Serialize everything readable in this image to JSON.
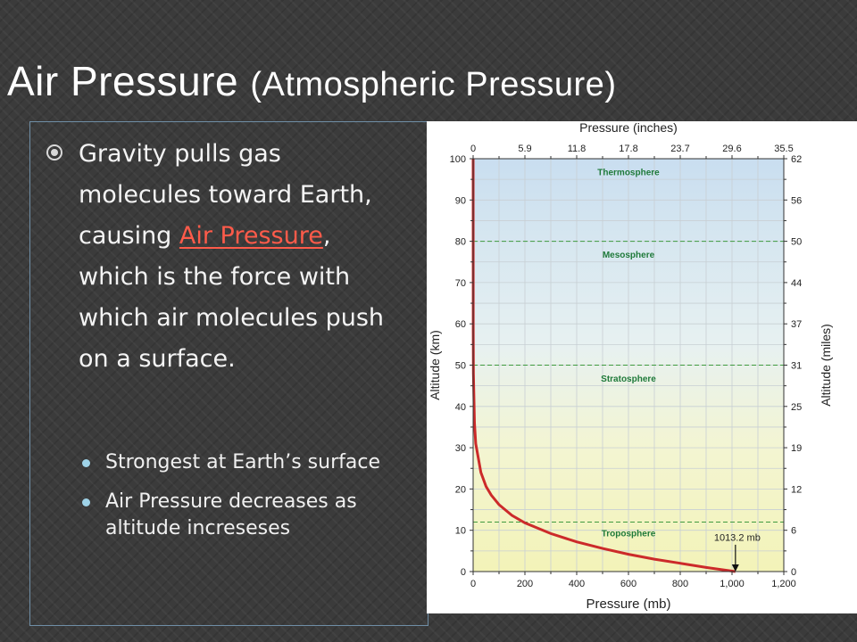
{
  "slide": {
    "title_main": "Air  Pressure",
    "title_sub": "(Atmospheric Pressure)",
    "bullet_before": "Gravity pulls gas molecules toward Earth, causing ",
    "bullet_highlight": "Air Pressure",
    "bullet_after": ", which is the force with which air molecules push on a surface.",
    "sub_bullets": [
      "Strongest at Earth’s surface",
      "Air Pressure decreases as altitude increseses"
    ]
  },
  "colors": {
    "background": "#3b3b3b",
    "highlight": "#ff5b4a",
    "curve": "#cc2a2a",
    "layer_line": "#3f9a3f",
    "layer_label": "#1f7a3a"
  },
  "chart_data": {
    "type": "line",
    "x": [
      1013.2,
      900,
      800,
      700,
      600,
      500,
      400,
      300,
      200,
      150,
      100,
      70,
      50,
      30,
      10,
      5,
      1,
      0.3,
      0.01
    ],
    "y": [
      0,
      1.0,
      2.0,
      3.0,
      4.2,
      5.6,
      7.2,
      9.2,
      11.8,
      13.6,
      16.2,
      18.5,
      20.6,
      24,
      31,
      36,
      48,
      58,
      100
    ],
    "xlabel_bottom": "Pressure (mb)",
    "xlabel_top": "Pressure (inches)",
    "ylabel_left": "Altitude (km)",
    "ylabel_right": "Altitude (miles)",
    "xlim": [
      0,
      1200
    ],
    "ylim": [
      0,
      100
    ],
    "x_ticks": [
      0,
      200,
      400,
      600,
      800,
      1000,
      1200
    ],
    "x_tick_labels": [
      "0",
      "200",
      "400",
      "600",
      "800",
      "1,000",
      "1,200"
    ],
    "top_ticks": [
      0,
      200,
      400,
      600,
      800,
      1000,
      1200
    ],
    "top_tick_labels": [
      "0",
      "5.9",
      "11.8",
      "17.8",
      "23.7",
      "29.6",
      "35.5"
    ],
    "y_ticks": [
      0,
      10,
      20,
      30,
      40,
      50,
      60,
      70,
      80,
      90,
      100
    ],
    "y_tick_labels": [
      "0",
      "10",
      "20",
      "30",
      "40",
      "50",
      "60",
      "70",
      "80",
      "90",
      "100"
    ],
    "right_ticks": [
      0,
      10,
      20,
      30,
      40,
      50,
      60,
      70,
      80,
      90,
      100
    ],
    "right_tick_labels": [
      "0",
      "6",
      "12",
      "19",
      "25",
      "31",
      "37",
      "44",
      "50",
      "56",
      "62"
    ],
    "layer_boundaries": [
      12,
      50,
      80
    ],
    "layers": [
      {
        "name": "Troposphere",
        "y": 8.5
      },
      {
        "name": "Stratosphere",
        "y": 46
      },
      {
        "name": "Mesosphere",
        "y": 76
      },
      {
        "name": "Thermosphere",
        "y": 96
      }
    ],
    "annotation": {
      "text": "1013.2 mb",
      "x": 1013.2,
      "y": 0
    },
    "grid": true
  }
}
